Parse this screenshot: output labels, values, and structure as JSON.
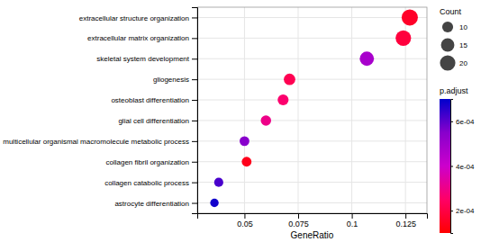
{
  "chart_data": {
    "type": "scatter",
    "categories": [
      "extracellular structure organization",
      "extracellular matrix organization",
      "skeletal system development",
      "gliogenesis",
      "osteoblast differentiation",
      "glial cell differentiation",
      "multicellular organismal macromolecule metabolic process",
      "collagen fibril organization",
      "collagen catabolic process",
      "astrocyte differentiation"
    ],
    "values": [
      0.127,
      0.124,
      0.107,
      0.071,
      0.068,
      0.06,
      0.05,
      0.051,
      0.038,
      0.036
    ],
    "sizes": [
      22,
      20,
      17,
      11,
      10,
      9,
      8,
      8,
      7,
      6
    ],
    "color_values": [
      0.00016,
      0.00019,
      0.00048,
      0.00022,
      0.00026,
      0.0003,
      0.00055,
      0.00014,
      0.00062,
      0.00068
    ],
    "color_range": [
      0.0001,
      0.0007
    ],
    "color_ticks": [
      {
        "value": 0.0006,
        "label": "6e-04"
      },
      {
        "value": 0.0004,
        "label": "4e-04"
      },
      {
        "value": 0.0002,
        "label": "2e-04"
      }
    ],
    "color_label": "p.adjust",
    "colorscale": [
      "#ff0000",
      "#ff0066",
      "#cc00cc",
      "#8800cc",
      "#0000cc"
    ],
    "size_legend_title": "Count",
    "size_legend_values": [
      10,
      15,
      20
    ],
    "xlabel": "GeneRatio",
    "xlim": [
      0.028,
      0.135
    ],
    "xticks": [
      0.05,
      0.075,
      0.1,
      0.125
    ],
    "grid": true
  }
}
